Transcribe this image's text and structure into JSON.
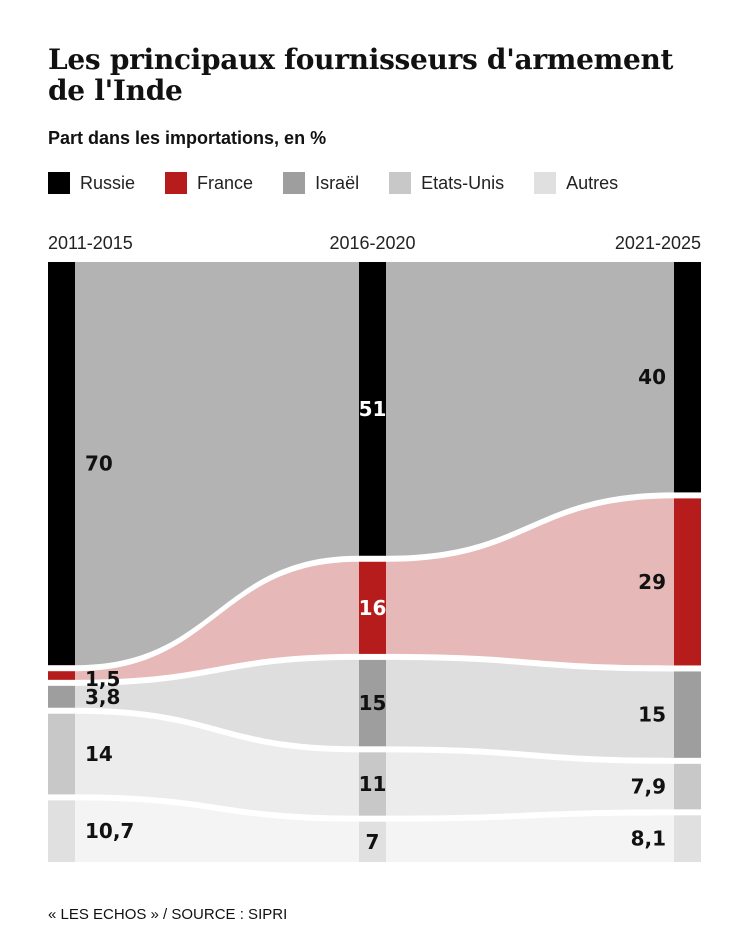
{
  "chart_data": {
    "type": "area",
    "title": "Les principaux fournisseurs d'armement de l'Inde",
    "subtitle": "Part dans les importations, en %",
    "categories": [
      "2011-2015",
      "2016-2020",
      "2021-2025"
    ],
    "series": [
      {
        "name": "Russie",
        "color": "#000000",
        "values": [
          70,
          51,
          40
        ],
        "labels": [
          "70",
          "51",
          "40"
        ]
      },
      {
        "name": "France",
        "color": "#b71c1c",
        "values": [
          1.5,
          16,
          29
        ],
        "labels": [
          "1,5",
          "16",
          "29"
        ]
      },
      {
        "name": "Israël",
        "color": "#9e9e9e",
        "values": [
          3.8,
          15,
          15
        ],
        "labels": [
          "3,8",
          "15",
          "15"
        ]
      },
      {
        "name": "Etats-Unis",
        "color": "#c8c8c8",
        "values": [
          14,
          11,
          7.9
        ],
        "labels": [
          "14",
          "11",
          "7,9"
        ]
      },
      {
        "name": "Autres",
        "color": "#e0e0e0",
        "values": [
          10.7,
          7,
          8.1
        ],
        "labels": [
          "10,7",
          "7",
          "8,1"
        ]
      }
    ],
    "flow_colors": [
      "#b3b3b3",
      "#e6b8b8",
      "#dedede",
      "#ececec",
      "#f4f4f4"
    ],
    "ylim": [
      0,
      100
    ],
    "legend_position": "top-left"
  },
  "source": "« LES ECHOS » / SOURCE : SIPRI"
}
